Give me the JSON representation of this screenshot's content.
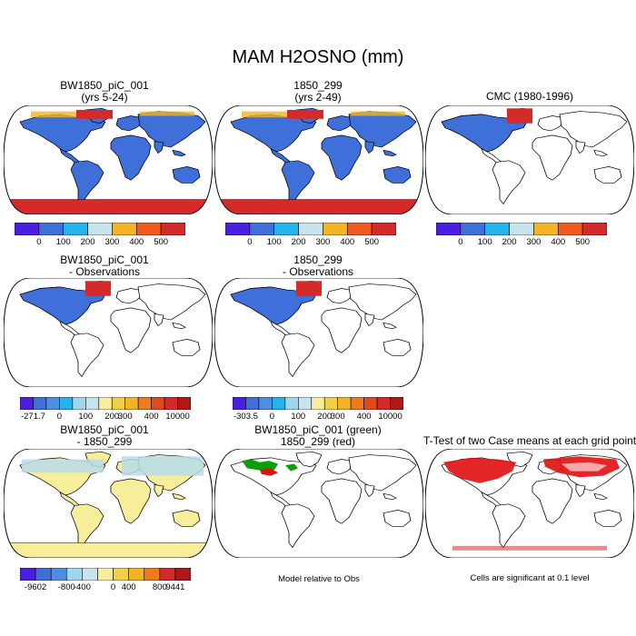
{
  "title": "MAM H2OSNO (mm)",
  "colors": {
    "ocean": "#ffffff",
    "land_outline": "#000000",
    "snow_low": "#3f6fd8",
    "snow_high": "#d42a2a",
    "snow_mid": "#f2b425",
    "diff_pos": "#f7ee9c",
    "diff_neg": "#b7dcea",
    "sig_green": "#0aa00a",
    "sig_red": "#e01010"
  },
  "panels": {
    "p1": {
      "title": "BW1850_piC_001",
      "subtitle": "(yrs 5-24)"
    },
    "p2": {
      "title": "1850_299",
      "subtitle": "(yrs 2-49)"
    },
    "p3": {
      "title": "CMC (1980-1996)",
      "subtitle": ""
    },
    "p4": {
      "title": "BW1850_piC_001",
      "subtitle": "- Observations"
    },
    "p5": {
      "title": "1850_299",
      "subtitle": "- Observations"
    },
    "p7": {
      "title": "BW1850_piC_001",
      "subtitle": "- 1850_299"
    },
    "p8": {
      "title": "BW1850_piC_001 (green)",
      "subtitle": "1850_299 (red)"
    },
    "p9": {
      "title": "T-Test of two Case means at each grid point",
      "subtitle": ""
    }
  },
  "colorbars": {
    "abs": {
      "colors": [
        "#4a1fe0",
        "#3f6fd8",
        "#25b3ea",
        "#c7e4ee",
        "#f2b425",
        "#ef5a1e",
        "#d42a2a"
      ],
      "labels": [
        "0",
        "100",
        "200",
        "300",
        "400",
        "500"
      ]
    },
    "diff1": {
      "colors": [
        "#4a1fe0",
        "#3f6fd8",
        "#4c8fe0",
        "#25b3ea",
        "#9fd6ee",
        "#c7e4ee",
        "#f7ee9c",
        "#f2cf48",
        "#f2b425",
        "#ef7a1e",
        "#e04a1e",
        "#d42a2a",
        "#b01818"
      ],
      "labels": [
        "-271.7",
        "0",
        "100",
        "200",
        "300",
        "400",
        "10000"
      ]
    },
    "diff2": {
      "colors": [
        "#4a1fe0",
        "#3f6fd8",
        "#4c8fe0",
        "#25b3ea",
        "#9fd6ee",
        "#c7e4ee",
        "#f7ee9c",
        "#f2cf48",
        "#f2b425",
        "#ef7a1e",
        "#e04a1e",
        "#d42a2a",
        "#b01818"
      ],
      "labels": [
        "-303.5",
        "0",
        "100",
        "200",
        "300",
        "400",
        "10000"
      ]
    },
    "diff3": {
      "colors": [
        "#4a1fe0",
        "#3f6fd8",
        "#4c8fe0",
        "#9fd6ee",
        "#c7e4ee",
        "#f7ee9c",
        "#f2cf48",
        "#f2b425",
        "#ef7a1e",
        "#d42a2a",
        "#b01818"
      ],
      "labels": [
        "-9602",
        "-800",
        "-400",
        "0",
        "400",
        "800",
        "9441"
      ]
    }
  },
  "notes": {
    "n8": "Model relative to Obs",
    "n9": "Cells are significant at 0.1 level"
  }
}
